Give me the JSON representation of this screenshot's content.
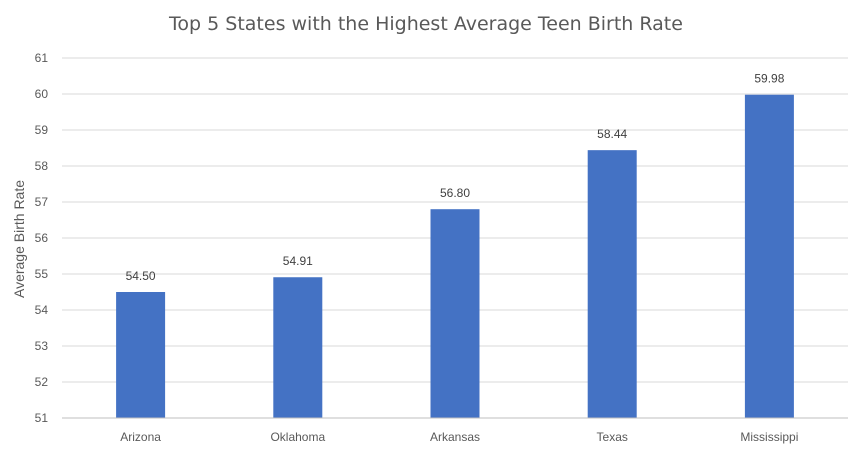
{
  "chart_data": {
    "type": "bar",
    "title": "Top 5 States with the Highest Average Teen Birth Rate",
    "xlabel": "",
    "ylabel": "Average Birth Rate",
    "categories": [
      "Arizona",
      "Oklahoma",
      "Arkansas",
      "Texas",
      "Mississippi"
    ],
    "values": [
      54.5,
      54.91,
      56.8,
      58.44,
      59.98
    ],
    "data_labels": [
      "54.50",
      "54.91",
      "56.80",
      "58.44",
      "59.98"
    ],
    "ylim": [
      51,
      61
    ],
    "yticks": [
      51,
      52,
      53,
      54,
      55,
      56,
      57,
      58,
      59,
      60,
      61
    ],
    "grid": true,
    "legend": "none",
    "bar_color": "#4472c4"
  }
}
